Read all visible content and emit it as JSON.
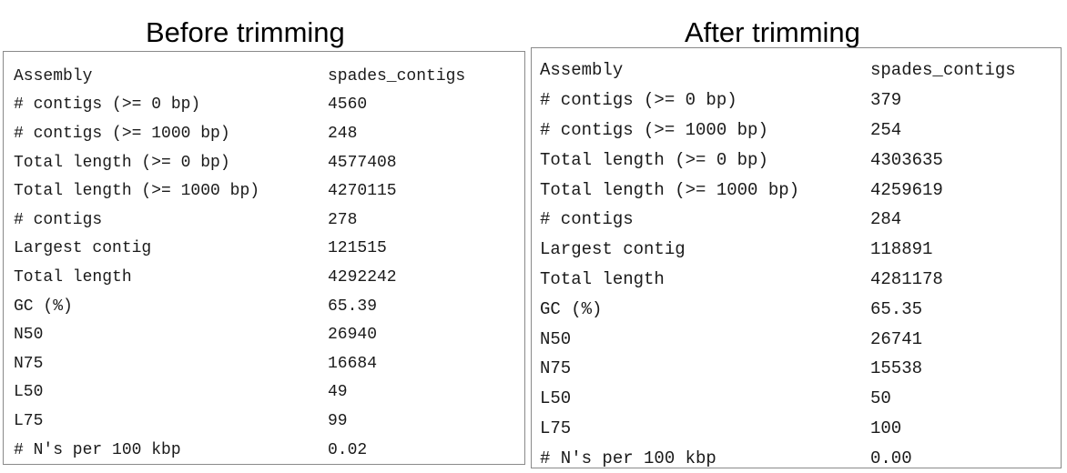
{
  "before": {
    "title": "Before trimming",
    "rows": [
      {
        "label": "Assembly",
        "value": "spades_contigs"
      },
      {
        "label": "# contigs (>= 0 bp)",
        "value": "4560"
      },
      {
        "label": "# contigs (>= 1000 bp)",
        "value": "248"
      },
      {
        "label": "Total length (>= 0 bp)",
        "value": "4577408"
      },
      {
        "label": "Total length (>= 1000 bp)",
        "value": "4270115"
      },
      {
        "label": "# contigs",
        "value": "278"
      },
      {
        "label": "Largest contig",
        "value": "121515"
      },
      {
        "label": "Total length",
        "value": "4292242"
      },
      {
        "label": "GC (%)",
        "value": "65.39"
      },
      {
        "label": "N50",
        "value": "26940"
      },
      {
        "label": "N75",
        "value": "16684"
      },
      {
        "label": "L50",
        "value": "49"
      },
      {
        "label": "L75",
        "value": "99"
      },
      {
        "label": "# N's per 100 kbp",
        "value": "0.02"
      }
    ]
  },
  "after": {
    "title": "After trimming",
    "rows": [
      {
        "label": "Assembly",
        "value": "spades_contigs"
      },
      {
        "label": "# contigs (>= 0 bp)",
        "value": "379"
      },
      {
        "label": "# contigs (>= 1000 bp)",
        "value": "254"
      },
      {
        "label": "Total length (>= 0 bp)",
        "value": "4303635"
      },
      {
        "label": "Total length (>= 1000 bp)",
        "value": "4259619"
      },
      {
        "label": "# contigs",
        "value": "284"
      },
      {
        "label": "Largest contig",
        "value": "118891"
      },
      {
        "label": "Total length",
        "value": "4281178"
      },
      {
        "label": "GC (%)",
        "value": "65.35"
      },
      {
        "label": "N50",
        "value": "26741"
      },
      {
        "label": "N75",
        "value": "15538"
      },
      {
        "label": "L50",
        "value": "50"
      },
      {
        "label": "L75",
        "value": "100"
      },
      {
        "label": "# N's per 100 kbp",
        "value": "0.00"
      }
    ]
  }
}
